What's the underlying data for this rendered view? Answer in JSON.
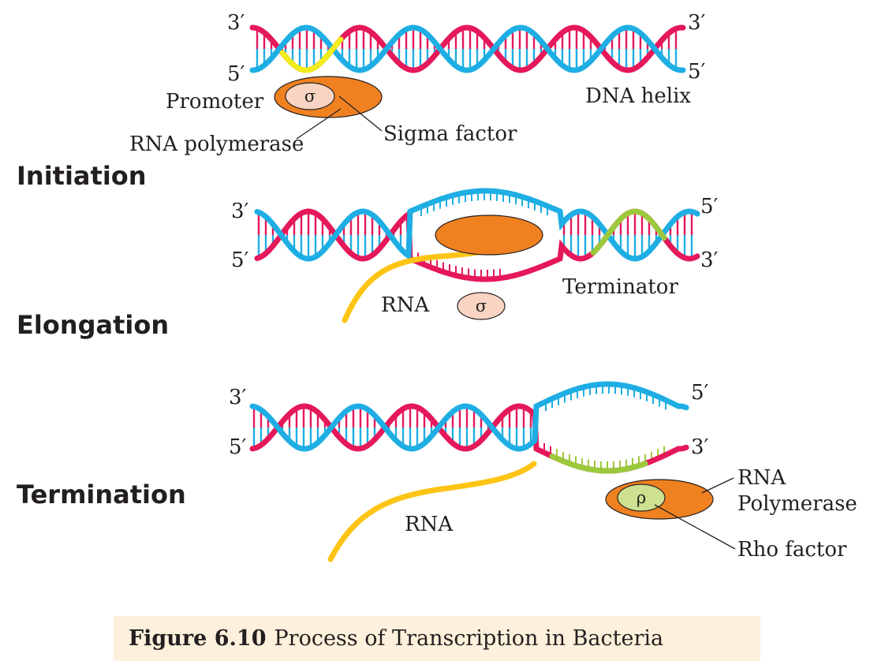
{
  "colors": {
    "strand_blue": "#1eaee4",
    "strand_pink": "#e5185a",
    "promoter": "#f2ec1a",
    "terminator": "#9cc93c",
    "rna": "#fdc414",
    "polymerase": "#f08121",
    "sigma": "#f9d4c3",
    "rho": "#cde190",
    "caption_bg": "#fdf0dc"
  },
  "stages": {
    "initiation": "Initiation",
    "elongation": "Elongation",
    "termination": "Termination"
  },
  "panel1": {
    "left_top": "3′",
    "left_bottom": "5′",
    "right_top": "3′",
    "right_bottom": "5′",
    "promoter": "Promoter",
    "rna_polymerase": "RNA polymerase",
    "sigma_factor": "Sigma factor",
    "sigma_symbol": "σ",
    "dna_helix": "DNA helix"
  },
  "panel2": {
    "left_top": "3′",
    "left_bottom": "5′",
    "right_top": "5′",
    "right_bottom": "3′",
    "rna": "RNA",
    "sigma_symbol": "σ",
    "terminator": "Terminator"
  },
  "panel3": {
    "left_top": "3′",
    "left_bottom": "5′",
    "right_top": "5′",
    "right_bottom": "3′",
    "rna": "RNA",
    "rna_polymerase_line1": "RNA",
    "rna_polymerase_line2": "Polymerase",
    "rho_symbol": "ρ",
    "rho_factor": "Rho factor"
  },
  "caption": {
    "figure_number": "Figure 6.10",
    "title": "Process of Transcription in Bacteria"
  }
}
